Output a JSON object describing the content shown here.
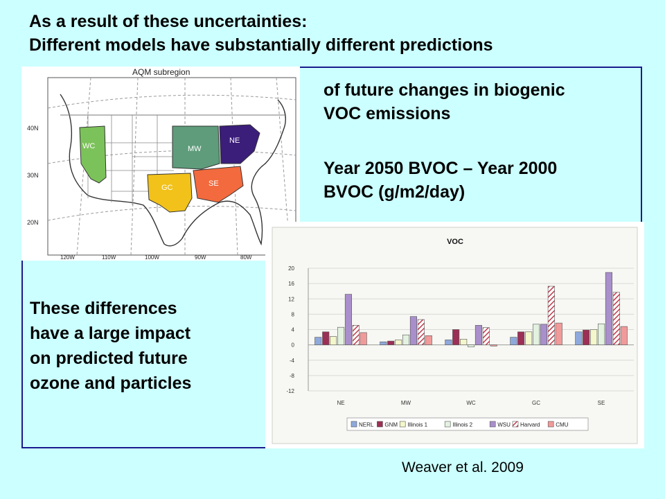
{
  "heading": {
    "line1": "As a result of these uncertainties:",
    "line2": "Different models have substantially different predictions"
  },
  "notes": {
    "right_top": [
      "of future changes in biogenic",
      "VOC emissions"
    ],
    "right_mid": [
      "Year 2050 BVOC – Year 2000",
      "BVOC (g/m2/day)"
    ],
    "left_bottom": [
      "These differences",
      "have a large impact",
      "on predicted future",
      "ozone and particles"
    ]
  },
  "map": {
    "title": "AQM subregion",
    "regions": [
      {
        "label": "WC",
        "color": "#7cc25a"
      },
      {
        "label": "MW",
        "color": "#5e9c7b"
      },
      {
        "label": "NE",
        "color": "#3b1d7a"
      },
      {
        "label": "GC",
        "color": "#f2c21b"
      },
      {
        "label": "SE",
        "color": "#f26a3d"
      }
    ],
    "lat_labels": [
      "40N",
      "30N",
      "20N"
    ],
    "lon_labels": [
      "120W",
      "110W",
      "100W",
      "90W",
      "80W"
    ]
  },
  "citation": "Weaver et al. 2009",
  "chart_data": {
    "type": "bar",
    "title": "VOC",
    "categories": [
      "NE",
      "MW",
      "WC",
      "GC",
      "SE"
    ],
    "ylim": [
      -12,
      20
    ],
    "yticks": [
      20,
      16,
      12,
      8,
      4,
      0,
      -4,
      -8,
      -12
    ],
    "grid": true,
    "legend": "bottom",
    "series": [
      {
        "name": "NERL",
        "color": "#8ea9db",
        "pattern": "solid",
        "values": [
          2.0,
          0.8,
          1.3,
          2.0,
          3.4
        ]
      },
      {
        "name": "GNM",
        "color": "#9c2f55",
        "pattern": "solid",
        "values": [
          3.4,
          1.0,
          4.0,
          3.4,
          3.9
        ]
      },
      {
        "name": "Illinois 1",
        "color": "#f4f6cc",
        "pattern": "solid",
        "values": [
          2.2,
          1.3,
          1.5,
          3.4,
          4.0
        ]
      },
      {
        "name": "Illinois 2",
        "color": "#e3f2e0",
        "pattern": "solid",
        "values": [
          4.6,
          2.6,
          -0.5,
          5.4,
          5.5
        ]
      },
      {
        "name": "WSU",
        "color": "#a98fcb",
        "pattern": "solid",
        "values": [
          13.2,
          7.4,
          5.1,
          5.4,
          18.9
        ]
      },
      {
        "name": "Harvard",
        "color": "#c0394b",
        "pattern": "hatch",
        "values": [
          5.1,
          6.6,
          4.5,
          15.3,
          13.7
        ]
      },
      {
        "name": "CMU",
        "color": "#f19a9a",
        "pattern": "solid",
        "values": [
          3.2,
          2.4,
          -0.3,
          5.7,
          4.8
        ]
      }
    ]
  }
}
